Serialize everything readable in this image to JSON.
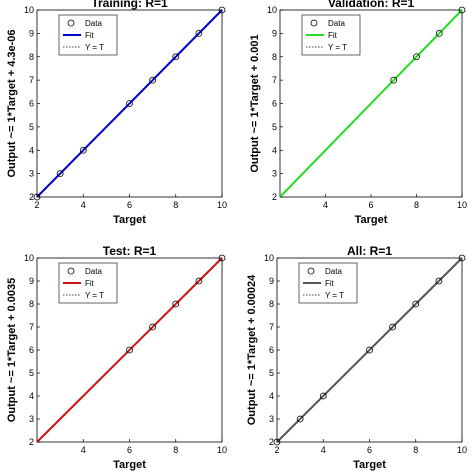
{
  "chart_data": [
    {
      "type": "scatter",
      "title": "Training: R=1",
      "xlabel": "Target",
      "ylabel": "Output ~= 1*Target + 4.3e-06",
      "xlim": [
        2,
        10
      ],
      "ylim": [
        2,
        10
      ],
      "xticks": [
        2,
        4,
        6,
        8,
        10
      ],
      "yticks": [
        2,
        3,
        4,
        5,
        6,
        7,
        8,
        9,
        10
      ],
      "points": [
        [
          2,
          2
        ],
        [
          3,
          3
        ],
        [
          4,
          4
        ],
        [
          6,
          6
        ],
        [
          7,
          7
        ],
        [
          8,
          8
        ],
        [
          9,
          9
        ],
        [
          10,
          10
        ]
      ],
      "fit": [
        [
          2,
          2
        ],
        [
          10,
          10
        ]
      ],
      "fit_color": "#0000cc",
      "legend": [
        "Data",
        "Fit",
        "Y = T"
      ],
      "legend_position": "top-left"
    },
    {
      "type": "scatter",
      "title": "Validation: R=1",
      "xlabel": "Target",
      "ylabel": "Output ~= 1*Target + 0.001",
      "xlim": [
        2,
        10
      ],
      "ylim": [
        2,
        10
      ],
      "xticks": [
        4,
        6,
        8,
        10
      ],
      "yticks": [
        2,
        3,
        4,
        5,
        6,
        7,
        8,
        9,
        10
      ],
      "points": [
        [
          7,
          7
        ],
        [
          8,
          8
        ],
        [
          9,
          9
        ],
        [
          10,
          10
        ]
      ],
      "fit": [
        [
          2,
          2
        ],
        [
          10,
          10
        ]
      ],
      "fit_color": "#22dd22",
      "legend": [
        "Data",
        "Fit",
        "Y = T"
      ],
      "legend_position": "top-left"
    },
    {
      "type": "scatter",
      "title": "Test: R=1",
      "xlabel": "Target",
      "ylabel": "Output ~= 1*Target + 0.0035",
      "xlim": [
        2,
        10
      ],
      "ylim": [
        2,
        10
      ],
      "xticks": [
        4,
        6,
        8,
        10
      ],
      "yticks": [
        2,
        3,
        4,
        5,
        6,
        7,
        8,
        9,
        10
      ],
      "points": [
        [
          6,
          6
        ],
        [
          7,
          7
        ],
        [
          8,
          8
        ],
        [
          9,
          9
        ],
        [
          10,
          10
        ]
      ],
      "fit": [
        [
          2,
          2
        ],
        [
          10,
          10
        ]
      ],
      "fit_color": "#cc1111",
      "legend": [
        "Data",
        "Fit",
        "Y = T"
      ],
      "legend_position": "top-left"
    },
    {
      "type": "scatter",
      "title": "All: R=1",
      "xlabel": "Target",
      "ylabel": "Output ~= 1*Target + 0.00024",
      "xlim": [
        2,
        10
      ],
      "ylim": [
        2,
        10
      ],
      "xticks": [
        2,
        4,
        6,
        8,
        10
      ],
      "yticks": [
        2,
        3,
        4,
        5,
        6,
        7,
        8,
        9,
        10
      ],
      "points": [
        [
          2,
          2
        ],
        [
          3,
          3
        ],
        [
          4,
          4
        ],
        [
          6,
          6
        ],
        [
          7,
          7
        ],
        [
          8,
          8
        ],
        [
          9,
          9
        ],
        [
          10,
          10
        ]
      ],
      "fit": [
        [
          2,
          2
        ],
        [
          10,
          10
        ]
      ],
      "fit_color": "#555555",
      "legend": [
        "Data",
        "Fit",
        "Y = T"
      ],
      "legend_position": "top-left"
    }
  ]
}
